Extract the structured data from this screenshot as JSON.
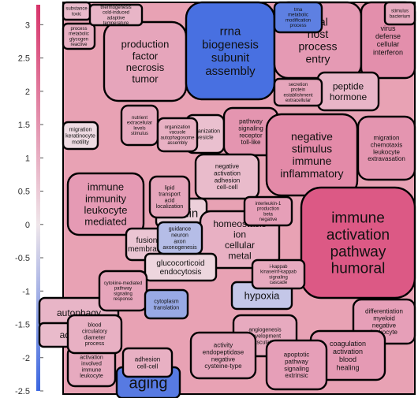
{
  "chart_data": {
    "type": "heatmap",
    "subtype": "voronoi-treemap",
    "title": "",
    "xlabel": "",
    "ylabel": "",
    "colorbar": {
      "ticks": [
        3,
        2.5,
        2,
        1.5,
        1,
        0.5,
        0,
        -0.5,
        -1,
        -1.5,
        -2,
        -2.5
      ],
      "range": [
        -2.5,
        3.3
      ],
      "low_color": "#3a66e0",
      "mid_color": "#efe6ea",
      "high_color": "#d7336a"
    },
    "cells": [
      {
        "label": [
          "production",
          "factor",
          "necrosis",
          "tumor"
        ],
        "value": 1.2
      },
      {
        "label": [
          "rrna",
          "biogenesis",
          "subunit",
          "assembly"
        ],
        "value": -2.3
      },
      {
        "label": [
          "viral",
          "host",
          "process",
          "entry"
        ],
        "value": 1.4
      },
      {
        "label": [
          "virus",
          "defense",
          "cellular",
          "interferon"
        ],
        "value": 1.6
      },
      {
        "label": [
          "peptide",
          "hormone"
        ],
        "value": 0.9
      },
      {
        "label": [
          "organization",
          "vesicle"
        ],
        "value": 0.7
      },
      {
        "label": [
          "pathway",
          "signaling",
          "receptor",
          "toll-like"
        ],
        "value": 1.5
      },
      {
        "label": [
          "negative",
          "stimulus",
          "immune",
          "inflammatory"
        ],
        "value": 1.7
      },
      {
        "label": [
          "migration",
          "chemotaxis",
          "leukocyte",
          "extravasation"
        ],
        "value": 1.5
      },
      {
        "label": [
          "migration",
          "keratinocyte",
          "motility"
        ],
        "value": 0.2
      },
      {
        "label": [
          "negative",
          "activation",
          "adhesion",
          "cell-cell"
        ],
        "value": 0.8
      },
      {
        "label": [
          "immune",
          "immunity",
          "leukocyte",
          "mediated"
        ],
        "value": 1.4
      },
      {
        "label": [
          "insulin"
        ],
        "value": 0.4
      },
      {
        "label": [
          "immune",
          "activation",
          "pathway",
          "humoral"
        ],
        "value": 2.6
      },
      {
        "label": [
          "homeostasis",
          "ion",
          "cellular",
          "metal"
        ],
        "value": 1.0
      },
      {
        "label": [
          "fusion",
          "membrane"
        ],
        "value": 0.6
      },
      {
        "label": [
          "glucocorticoid",
          "endocytosis"
        ],
        "value": 0.3
      },
      {
        "label": [
          "hypoxia"
        ],
        "value": -0.6
      },
      {
        "label": [
          "autophagy"
        ],
        "value": 0.9
      },
      {
        "label": [
          "adhesion"
        ],
        "value": 0.8
      },
      {
        "label": [
          "angiogenesis",
          "development",
          "vasculature"
        ],
        "value": 1.1
      },
      {
        "label": [
          "differentiation",
          "myeloid",
          "negative",
          "leukocyte"
        ],
        "value": 1.3
      },
      {
        "label": [
          "coagulation",
          "activation",
          "blood",
          "healing"
        ],
        "value": 1.4
      },
      {
        "label": [
          "apoptotic",
          "pathway",
          "signaling",
          "extrinsic"
        ],
        "value": 1.3
      },
      {
        "label": [
          "activity",
          "endopeptidase",
          "negative",
          "cysteine-type"
        ],
        "value": 1.2
      },
      {
        "label": [
          "aging"
        ],
        "value": -2.1
      },
      {
        "label": [
          "activation",
          "involved",
          "immune",
          "leukocyte"
        ],
        "value": 1.1
      },
      {
        "label": [
          "blood",
          "circulatory",
          "diameter",
          "process"
        ],
        "value": 1.0
      },
      {
        "label": [
          "cytokine-mediated",
          "pathway",
          "signaling",
          "response"
        ],
        "value": 1.2
      },
      {
        "label": [
          "nutrient",
          "extracellular",
          "levels",
          "stimulus"
        ],
        "value": 1.1
      },
      {
        "label": [
          "organization",
          "vacuole",
          "autophagosome",
          "assembly"
        ],
        "value": 1.0
      },
      {
        "label": [
          "lipid",
          "transport",
          "acid",
          "localization"
        ],
        "value": 1.2
      },
      {
        "label": [
          "guidance",
          "neuron",
          "axon",
          "axonogenesis"
        ],
        "value": -0.8
      },
      {
        "label": [
          "interleukin-1",
          "production",
          "beta",
          "negative"
        ],
        "value": 1.3
      },
      {
        "label": [
          "i-kappab",
          "kinase/nf-kappab",
          "signaling",
          "cascade"
        ],
        "value": 1.1
      },
      {
        "label": [
          "secretion",
          "protein",
          "establishment",
          "extracellular"
        ],
        "value": 1.2
      },
      {
        "label": [
          "cytoplasm",
          "translation"
        ],
        "value": -1.2
      },
      {
        "label": [
          "adhesion",
          "cell-cell"
        ],
        "value": 1.0
      },
      {
        "label": [
          "substance",
          "toxic"
        ],
        "value": 0.8
      },
      {
        "label": [
          "process",
          "metabolic",
          "glycogen",
          "reactive"
        ],
        "value": 1.0
      },
      {
        "label": [
          "thermogenesis",
          "cold-induced",
          "adaptive",
          "temperature"
        ],
        "value": 0.9
      },
      {
        "label": [
          "trna",
          "metabolic",
          "modification",
          "process"
        ],
        "value": -2.0
      },
      {
        "label": [
          "stimulus",
          "bacterium"
        ],
        "value": 1.1
      }
    ]
  }
}
